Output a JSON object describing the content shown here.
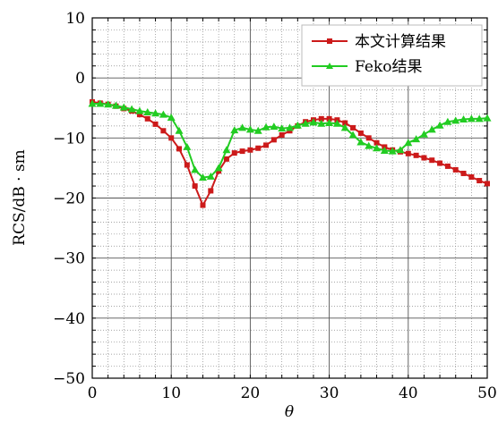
{
  "chart_data": {
    "type": "line",
    "title": "",
    "xlabel": "θ",
    "ylabel": "RCS/dB · sm",
    "xlim": [
      0,
      50
    ],
    "ylim": [
      -50,
      10
    ],
    "x_ticks": [
      0,
      10,
      20,
      30,
      40,
      50
    ],
    "y_ticks": [
      10,
      0,
      -10,
      -20,
      -30,
      -40,
      -50
    ],
    "x_tick_labels": [
      "0",
      "10",
      "20",
      "30",
      "40",
      "50"
    ],
    "y_tick_labels": [
      "10",
      "0",
      "−10",
      "−20",
      "−30",
      "−40",
      "−50"
    ],
    "grid": true,
    "legend_position": "top-right",
    "x": [
      0,
      1,
      2,
      3,
      4,
      5,
      6,
      7,
      8,
      9,
      10,
      11,
      12,
      13,
      14,
      15,
      16,
      17,
      18,
      19,
      20,
      21,
      22,
      23,
      24,
      25,
      26,
      27,
      28,
      29,
      30,
      31,
      32,
      33,
      34,
      35,
      36,
      37,
      38,
      39,
      40,
      41,
      42,
      43,
      44,
      45,
      46,
      47,
      48,
      49,
      50
    ],
    "series": [
      {
        "name": "本文计算结果",
        "color": "#cc1a1a",
        "marker": "square",
        "values": [
          -4.0,
          -4.2,
          -4.4,
          -4.7,
          -5.1,
          -5.5,
          -6.1,
          -6.8,
          -7.7,
          -8.8,
          -10.0,
          -11.8,
          -14.5,
          -18.0,
          -21.2,
          -18.8,
          -15.5,
          -13.5,
          -12.5,
          -12.2,
          -12.0,
          -11.7,
          -11.2,
          -10.3,
          -9.5,
          -8.8,
          -8.0,
          -7.3,
          -7.0,
          -6.8,
          -6.8,
          -7.0,
          -7.5,
          -8.3,
          -9.2,
          -10.0,
          -10.8,
          -11.5,
          -12.0,
          -12.3,
          -12.6,
          -12.9,
          -13.3,
          -13.7,
          -14.2,
          -14.7,
          -15.3,
          -15.9,
          -16.5,
          -17.1,
          -17.6
        ]
      },
      {
        "name": "Feko结果",
        "color": "#22cc22",
        "marker": "triangle",
        "values": [
          -4.3,
          -4.3,
          -4.4,
          -4.6,
          -4.9,
          -5.2,
          -5.5,
          -5.7,
          -5.9,
          -6.1,
          -6.6,
          -8.8,
          -11.5,
          -15.3,
          -16.6,
          -16.4,
          -15.0,
          -12.0,
          -8.7,
          -8.3,
          -8.6,
          -8.8,
          -8.2,
          -8.1,
          -8.4,
          -8.3,
          -7.9,
          -7.6,
          -7.4,
          -7.6,
          -7.5,
          -7.6,
          -8.3,
          -9.5,
          -10.7,
          -11.3,
          -11.7,
          -12.1,
          -12.2,
          -12.0,
          -10.8,
          -10.2,
          -9.4,
          -8.6,
          -7.9,
          -7.3,
          -7.1,
          -6.9,
          -6.8,
          -6.8,
          -6.7
        ]
      }
    ]
  }
}
